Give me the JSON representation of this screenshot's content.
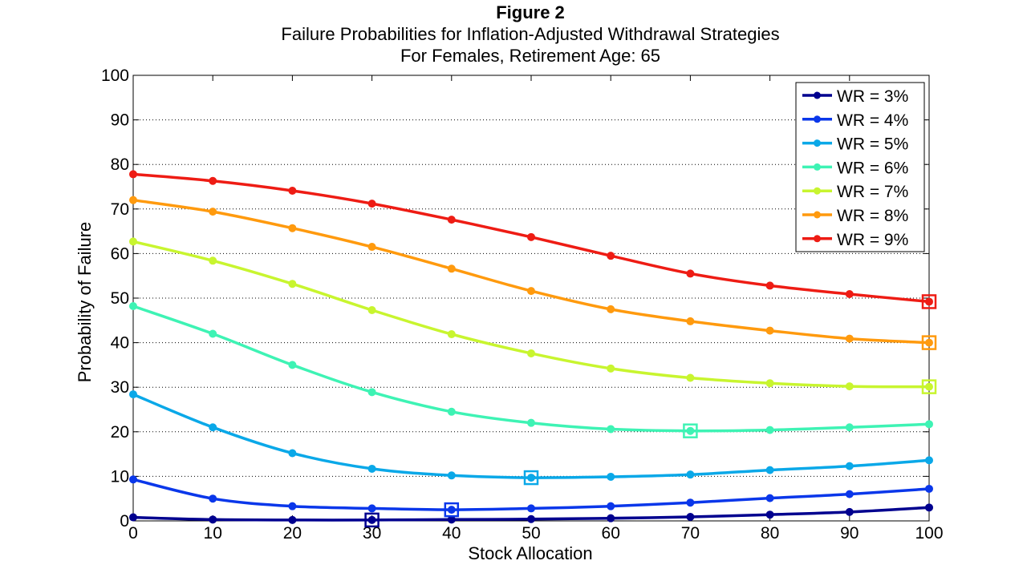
{
  "chart_data": {
    "type": "line",
    "title": "Figure 2",
    "subtitle_line1": "Failure Probabilities for Inflation-Adjusted Withdrawal Strategies",
    "subtitle_line2": "For Females, Retirement Age: 65",
    "xlabel": "Stock Allocation",
    "ylabel": "Probability of Failure",
    "xlim": [
      0,
      100
    ],
    "ylim": [
      0,
      100
    ],
    "x_ticks": [
      0,
      10,
      20,
      30,
      40,
      50,
      60,
      70,
      80,
      90,
      100
    ],
    "y_ticks": [
      0,
      10,
      20,
      30,
      40,
      50,
      60,
      70,
      80,
      90,
      100
    ],
    "grid": "y-dotted",
    "legend_position": "top-right",
    "x": [
      0,
      10,
      20,
      30,
      40,
      50,
      60,
      70,
      80,
      90,
      100
    ],
    "series": [
      {
        "name": "WR = 3%",
        "color": "#00008f",
        "values": [
          0.8,
          0.3,
          0.2,
          0.2,
          0.3,
          0.4,
          0.6,
          0.9,
          1.4,
          2.0,
          3.0
        ],
        "optimal_x": 30
      },
      {
        "name": "WR = 4%",
        "color": "#0a37ea",
        "values": [
          9.3,
          5.0,
          3.3,
          2.8,
          2.5,
          2.8,
          3.3,
          4.1,
          5.1,
          6.0,
          7.2
        ],
        "optimal_x": 40
      },
      {
        "name": "WR = 5%",
        "color": "#0aa8e8",
        "values": [
          28.4,
          21.0,
          15.2,
          11.7,
          10.2,
          9.7,
          9.9,
          10.4,
          11.4,
          12.3,
          13.6
        ],
        "optimal_x": 50
      },
      {
        "name": "WR = 6%",
        "color": "#3ef3b4",
        "values": [
          48.2,
          42.0,
          35.0,
          28.9,
          24.5,
          22.0,
          20.6,
          20.2,
          20.4,
          21.0,
          21.7
        ],
        "optimal_x": 70
      },
      {
        "name": "WR = 7%",
        "color": "#c8f52f",
        "values": [
          62.7,
          58.4,
          53.2,
          47.3,
          41.9,
          37.6,
          34.2,
          32.1,
          30.9,
          30.2,
          30.1
        ],
        "optimal_x": 100
      },
      {
        "name": "WR = 8%",
        "color": "#ff9a0e",
        "values": [
          72.0,
          69.4,
          65.7,
          61.5,
          56.6,
          51.6,
          47.5,
          44.8,
          42.7,
          40.9,
          40.0
        ],
        "optimal_x": 100
      },
      {
        "name": "WR = 9%",
        "color": "#ee1c14",
        "values": [
          77.8,
          76.3,
          74.1,
          71.2,
          67.6,
          63.7,
          59.5,
          55.5,
          52.8,
          50.9,
          49.2
        ],
        "optimal_x": 100
      }
    ]
  }
}
